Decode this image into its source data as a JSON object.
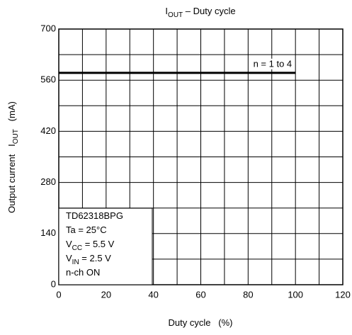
{
  "chart_data": {
    "type": "line",
    "title": [
      "I",
      "OUT",
      " – Duty cycle"
    ],
    "xlabel": [
      "Duty cycle   (%)"
    ],
    "ylabel": [
      "Output current   I",
      "OUT",
      "   (mA)"
    ],
    "x": [
      0,
      100
    ],
    "series": [
      {
        "name": "n = 1 to 4",
        "color": "#000000",
        "values": [
          580,
          580
        ]
      }
    ],
    "xlim": [
      0,
      120
    ],
    "xticks": [
      0,
      20,
      40,
      60,
      80,
      100,
      120
    ],
    "ylim": [
      0,
      700
    ],
    "yticks": [
      0,
      140,
      280,
      420,
      560,
      700
    ],
    "grid": true,
    "annotation": [
      [
        "TD62318BPG"
      ],
      [
        "Ta = 25°C"
      ],
      [
        "V",
        "CC",
        " = 5.5 V"
      ],
      [
        "V",
        "IN",
        " = 2.5 V"
      ],
      [
        "n-ch ON"
      ]
    ]
  }
}
